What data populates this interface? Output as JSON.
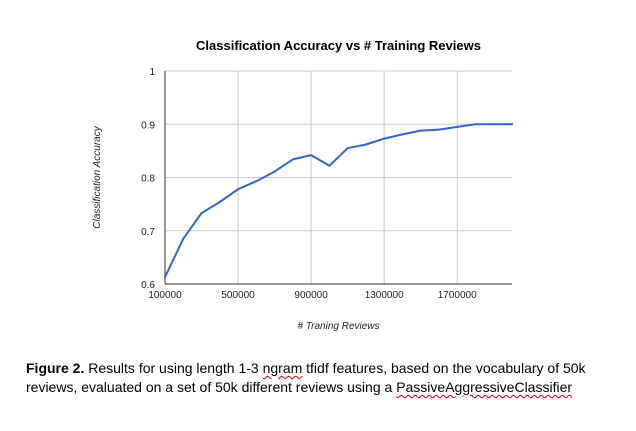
{
  "chart_data": {
    "type": "line",
    "title": "Classification Accuracy vs # Training Reviews",
    "xlabel": "# Traning Reviews",
    "ylabel": "Classification Accuracy",
    "xlim": [
      100000,
      2000000
    ],
    "ylim": [
      0.6,
      1.0
    ],
    "x_ticks": [
      100000,
      500000,
      900000,
      1300000,
      1700000
    ],
    "x_tick_labels": [
      "100000",
      "500000",
      "900000",
      "1300000",
      "1700000"
    ],
    "y_ticks": [
      0.6,
      0.7,
      0.8,
      0.9,
      1.0
    ],
    "y_tick_labels": [
      "0.6",
      "0.7",
      "0.8",
      "0.9",
      "1"
    ],
    "grid": true,
    "legend": "none",
    "series": [
      {
        "color": "#3366cc",
        "x": [
          100000,
          200000,
          300000,
          400000,
          500000,
          600000,
          700000,
          800000,
          900000,
          1000000,
          1100000,
          1200000,
          1300000,
          1400000,
          1500000,
          1600000,
          1700000,
          1800000,
          1900000,
          2000000
        ],
        "y": [
          0.613,
          0.685,
          0.733,
          0.754,
          0.778,
          0.793,
          0.811,
          0.834,
          0.842,
          0.822,
          0.855,
          0.862,
          0.873,
          0.881,
          0.888,
          0.89,
          0.895,
          0.9,
          0.9,
          0.9
        ]
      }
    ]
  },
  "caption": {
    "label": "Figure 2.",
    "text_1": " Results for using length 1-3 ",
    "word_ngram": "ngram",
    "text_2": " tfidf features, based on the vocabulary of 50k reviews, evaluated on a set of 50k different reviews using a ",
    "word_classifier": "PassiveAggressiveClassifier"
  }
}
